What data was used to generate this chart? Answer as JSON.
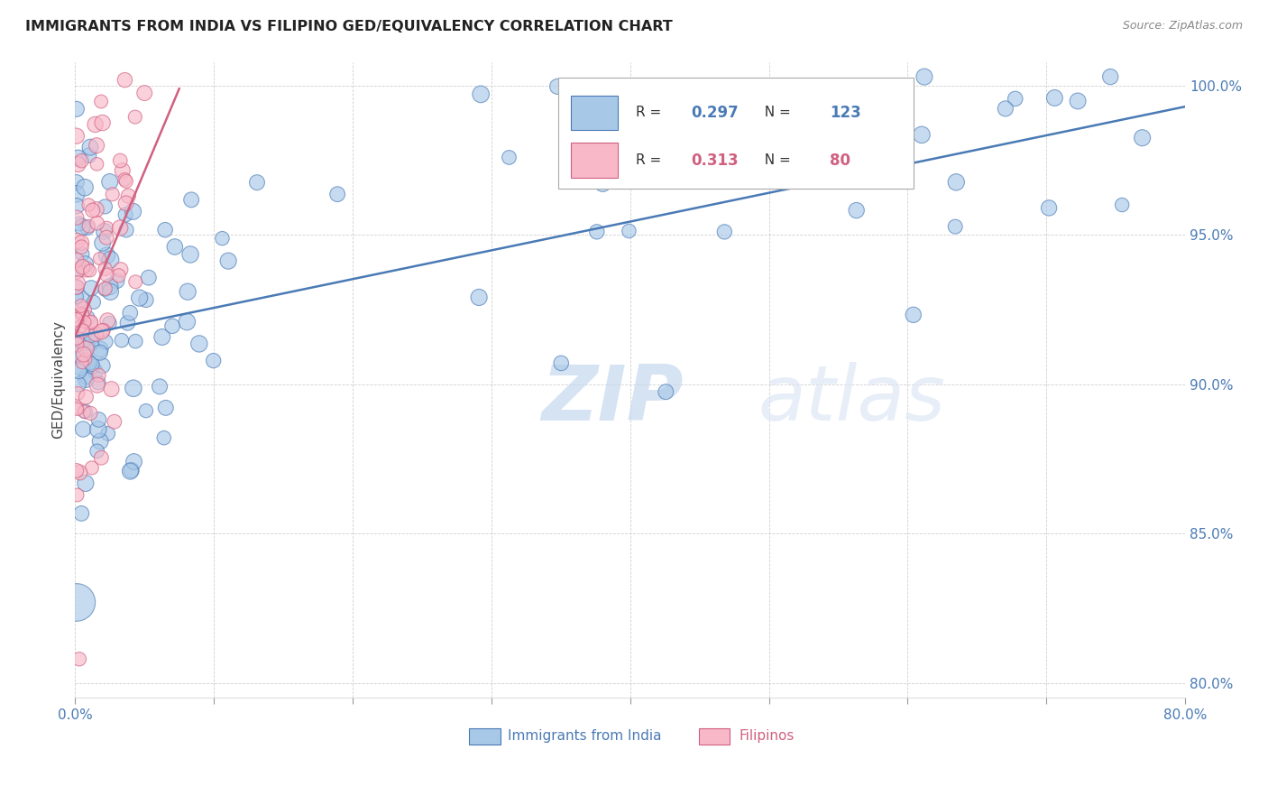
{
  "title": "IMMIGRANTS FROM INDIA VS FILIPINO GED/EQUIVALENCY CORRELATION CHART",
  "source": "Source: ZipAtlas.com",
  "ylabel": "GED/Equivalency",
  "legend_india": "Immigrants from India",
  "legend_filipino": "Filipinos",
  "xlim": [
    0.0,
    0.8
  ],
  "ylim": [
    0.795,
    1.008
  ],
  "xticks": [
    0.0,
    0.1,
    0.2,
    0.3,
    0.4,
    0.5,
    0.6,
    0.7,
    0.8
  ],
  "yticks": [
    0.8,
    0.85,
    0.9,
    0.95,
    1.0
  ],
  "ytick_labels": [
    "80.0%",
    "85.0%",
    "90.0%",
    "95.0%",
    "100.0%"
  ],
  "color_india": "#a8c8e8",
  "color_filipino": "#f8b8c8",
  "line_color_india": "#4a7ab5",
  "line_color_filipino": "#d06080",
  "watermark_zip": "ZIP",
  "watermark_atlas": "atlas",
  "india_trend_x": [
    0.0,
    0.8
  ],
  "india_trend_y": [
    0.916,
    0.993
  ],
  "filipino_trend_x": [
    0.0,
    0.075
  ],
  "filipino_trend_y": [
    0.916,
    0.999
  ],
  "r_india": "0.297",
  "n_india": "123",
  "r_filipino": "0.313",
  "n_filipino": "80"
}
